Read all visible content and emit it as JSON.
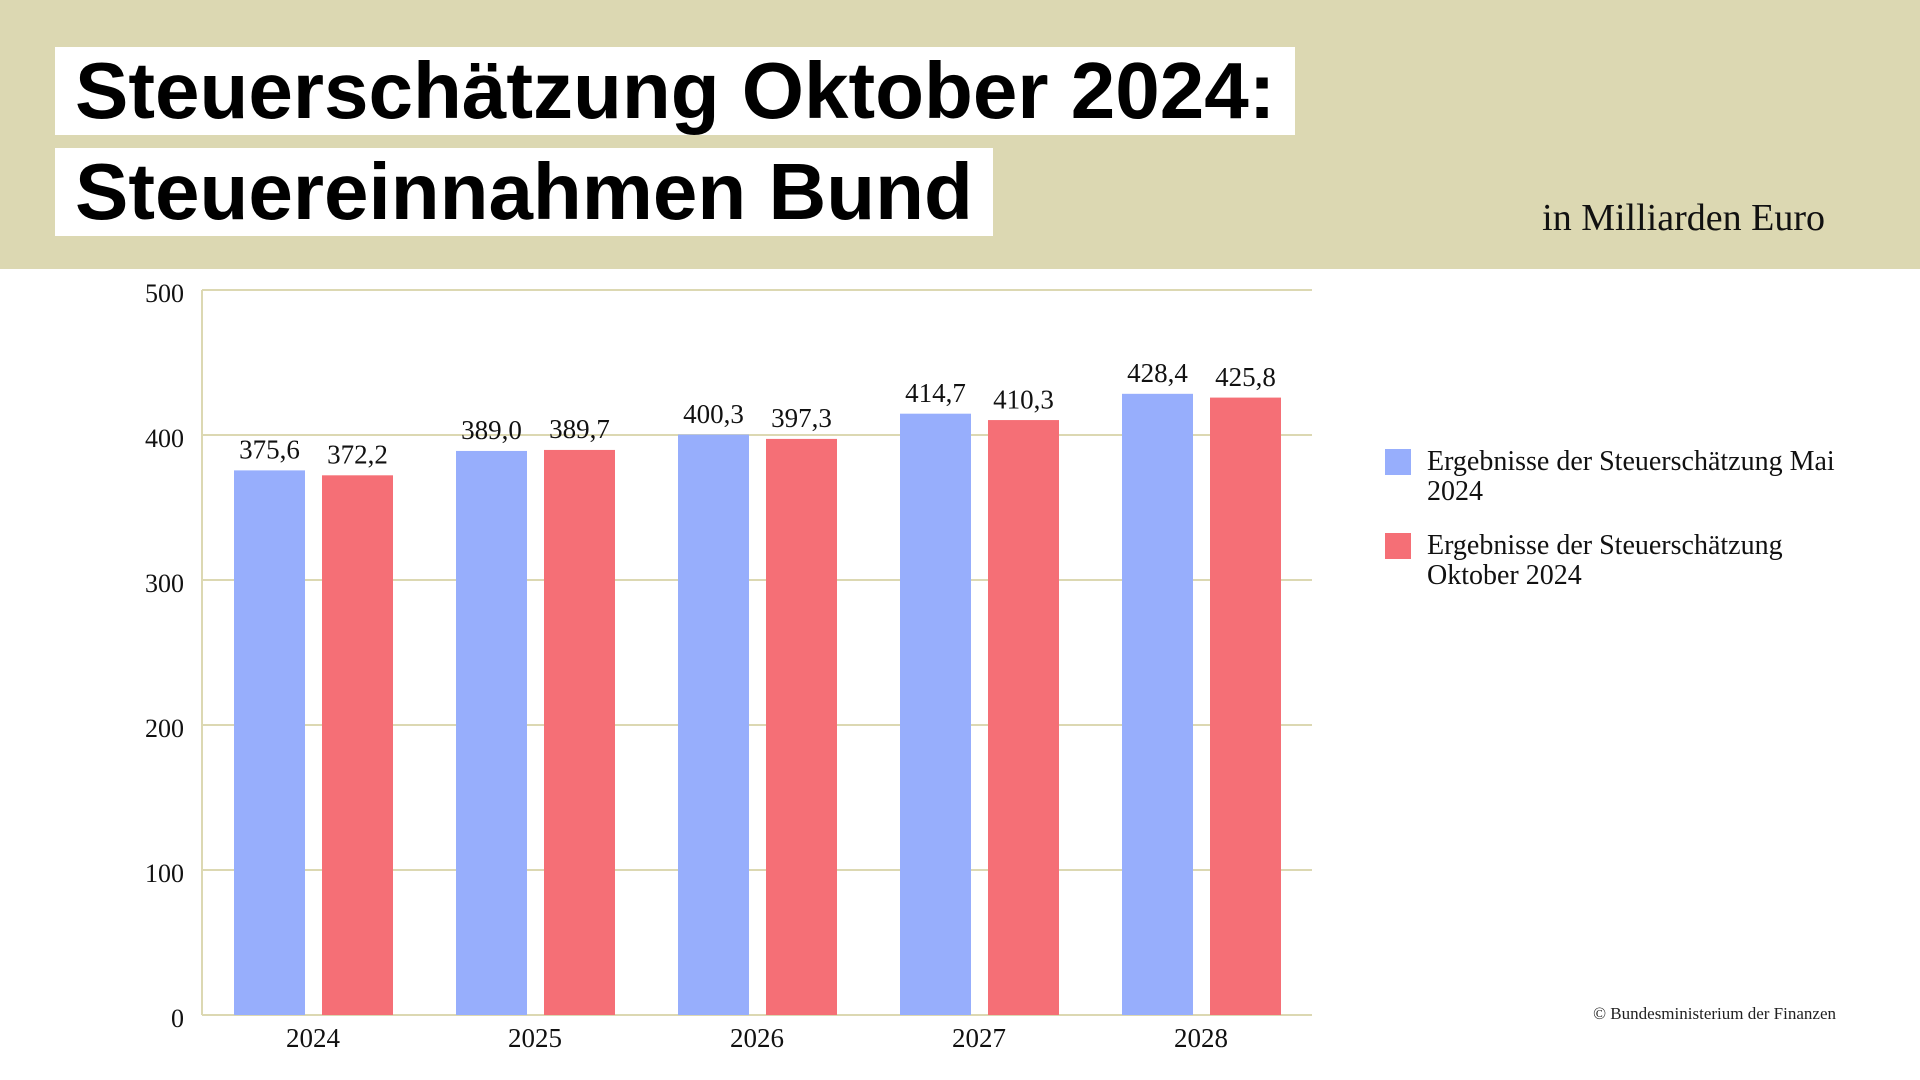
{
  "chart_data": {
    "type": "bar",
    "title": [
      "Steuerschätzung Oktober 2024:",
      "Steuereinnahmen Bund"
    ],
    "subtitle": "in Milliarden Euro",
    "source": "© Bundesministerium der Finanzen",
    "categories": [
      "2024",
      "2025",
      "2026",
      "2027",
      "2028"
    ],
    "series": [
      {
        "name": "Ergebnisse der Steuerschätzung Mai 2024",
        "color": "#97aefc",
        "values": [
          375.6,
          389.0,
          400.3,
          414.7,
          428.4
        ],
        "value_labels": [
          "375,6",
          "389,0",
          "400,3",
          "414,7",
          "428,4"
        ]
      },
      {
        "name": "Ergebnisse der Steuerschätzung Oktober 2024",
        "color": "#f56f76",
        "values": [
          372.2,
          389.7,
          397.3,
          410.3,
          425.8
        ],
        "value_labels": [
          "372,2",
          "389,7",
          "397,3",
          "410,3",
          "425,8"
        ]
      }
    ],
    "ylim": [
      0,
      500
    ],
    "yticks": [
      0,
      100,
      200,
      300,
      400,
      500
    ],
    "grid": true
  }
}
